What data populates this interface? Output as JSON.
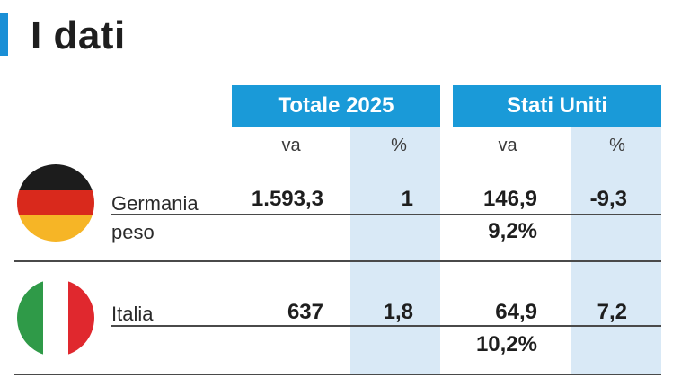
{
  "title": "I dati",
  "headers": {
    "totale": "Totale 2025",
    "usa": "Stati Uniti"
  },
  "subheaders": {
    "totale_va": "va",
    "totale_pct": "%",
    "usa_va": "va",
    "usa_pct": "%"
  },
  "colors": {
    "accent": "#1a9ad8",
    "shade": "#d9e9f6",
    "de_black": "#1c1c1c",
    "de_red": "#d9291c",
    "de_gold": "#f6b526",
    "it_green": "#2f9a48",
    "it_white": "#ffffff",
    "it_red": "#e0282e"
  },
  "rows": [
    {
      "country": "Germania",
      "flag_icon": "germany-flag-icon",
      "totale_va": "1.593,3",
      "totale_pct": "1",
      "usa_va": "146,9",
      "usa_pct": "-9,3",
      "weight_label": "peso",
      "usa_weight": "9,2%"
    },
    {
      "country": "Italia",
      "flag_icon": "italy-flag-icon",
      "totale_va": "637",
      "totale_pct": "1,8",
      "usa_va": "64,9",
      "usa_pct": "7,2",
      "weight_label": "",
      "usa_weight": "10,2%"
    }
  ]
}
